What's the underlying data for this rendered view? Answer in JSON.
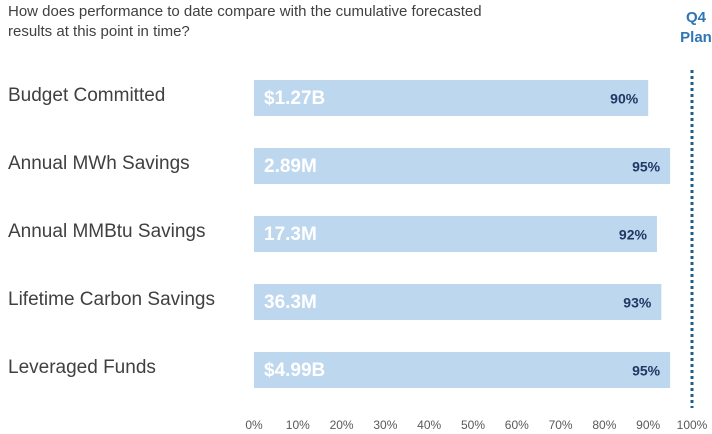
{
  "chart_data": {
    "type": "barh",
    "title": [
      "How does performance to date compare with the cumulative forecasted",
      "results at this point in time?"
    ],
    "categories": [
      "Budget Committed",
      "Annual MWh Savings",
      "Annual MMBtu Savings",
      "Lifetime Carbon Savings",
      "Leveraged Funds"
    ],
    "values": [
      90,
      95,
      92,
      93,
      95
    ],
    "value_labels": [
      "90%",
      "95%",
      "92%",
      "93%",
      "95%"
    ],
    "bar_annotations": [
      "$1.27B",
      "2.89M",
      "17.3M",
      "36.3M",
      "$4.99B"
    ],
    "color": "#bdd7ee",
    "reference_line": {
      "value": 100,
      "label": [
        "Q4",
        "Plan"
      ],
      "color": "#1f5f8b"
    },
    "xlim": [
      0,
      100
    ],
    "xticks": [
      {
        "value": 0,
        "label": "0%"
      },
      {
        "value": 10,
        "label": "10%"
      },
      {
        "value": 20,
        "label": "20%"
      },
      {
        "value": 30,
        "label": "30%"
      },
      {
        "value": 40,
        "label": "40%"
      },
      {
        "value": 50,
        "label": "50%"
      },
      {
        "value": 60,
        "label": "60%"
      },
      {
        "value": 70,
        "label": "70%"
      },
      {
        "value": 80,
        "label": "80%"
      },
      {
        "value": 90,
        "label": "90%"
      },
      {
        "value": 100,
        "label": "100%"
      }
    ],
    "grid": false
  }
}
